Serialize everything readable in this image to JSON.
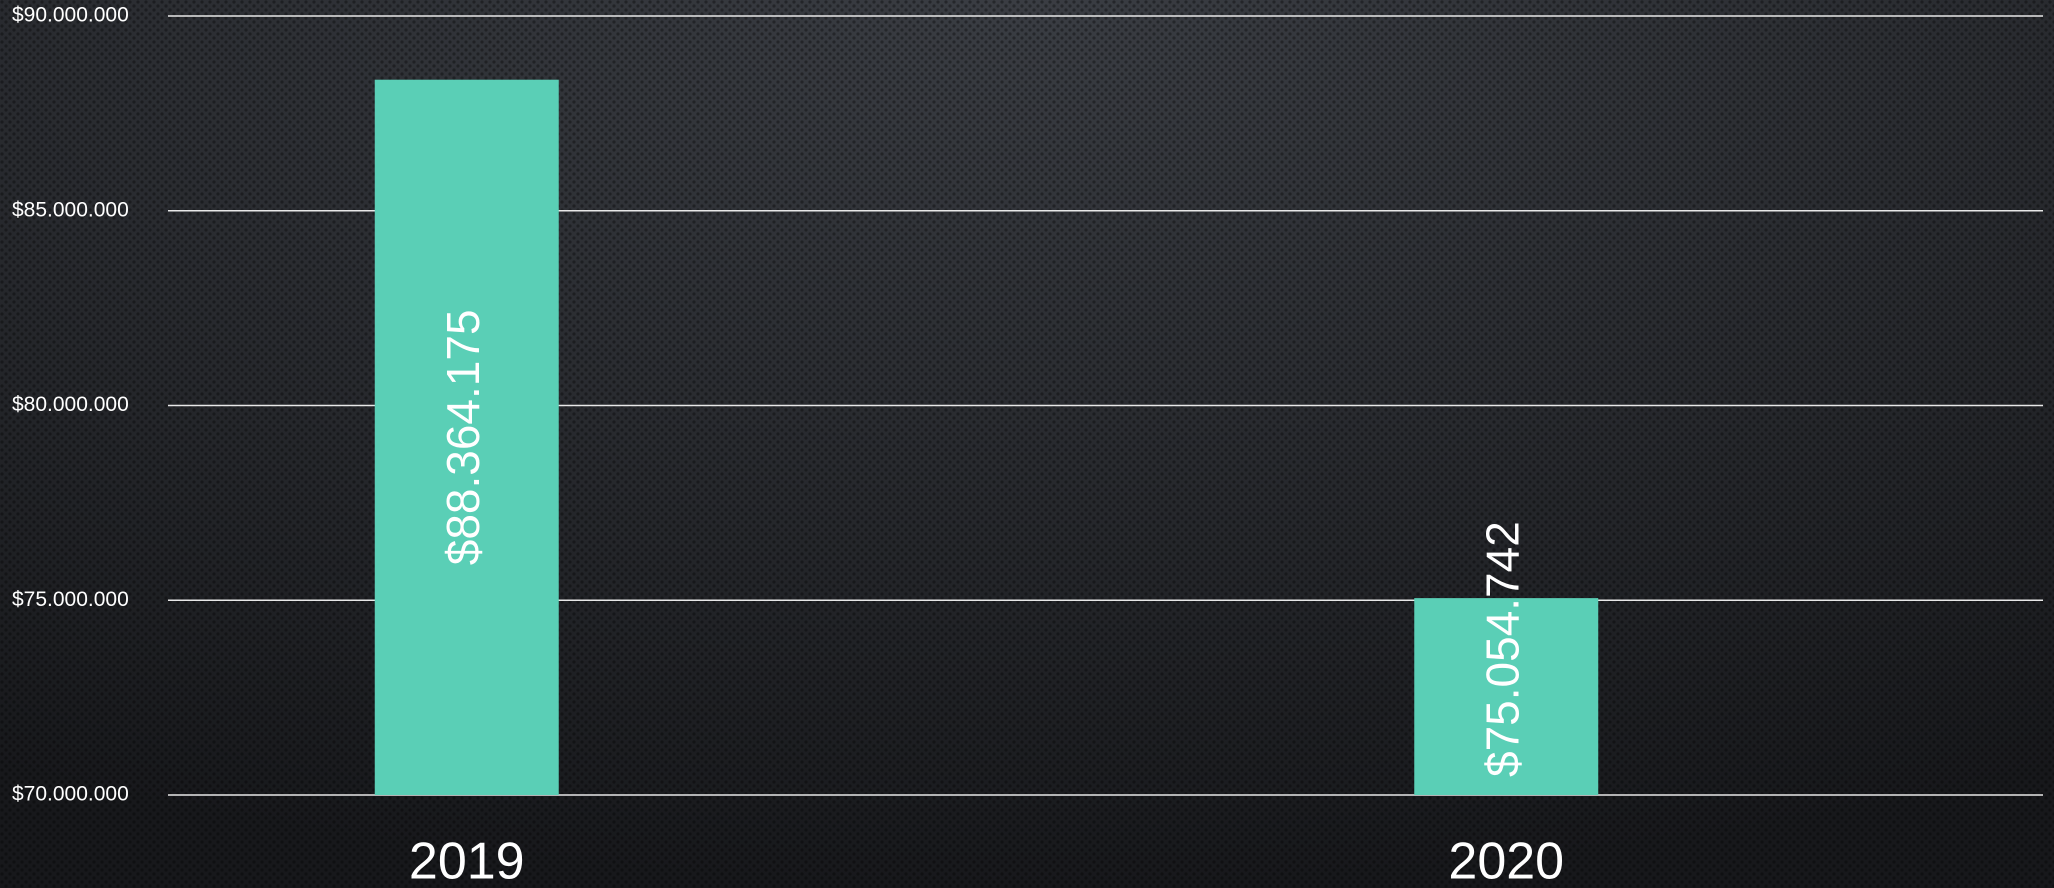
{
  "chart_data": {
    "type": "bar",
    "categories": [
      "2019",
      "2020"
    ],
    "values": [
      88364175,
      75054742
    ],
    "value_labels": [
      "$88.364.175",
      "$75.054.742"
    ],
    "color": "#5acfb6",
    "ylim": [
      70000000,
      90000000
    ],
    "yticks": [
      {
        "value": 70000000,
        "label": "$70.000.000"
      },
      {
        "value": 75000000,
        "label": "$75.000.000"
      },
      {
        "value": 80000000,
        "label": "$80.000.000"
      },
      {
        "value": 85000000,
        "label": "$85.000.000"
      },
      {
        "value": 90000000,
        "label": "$90.000.000"
      }
    ],
    "grid": true
  }
}
